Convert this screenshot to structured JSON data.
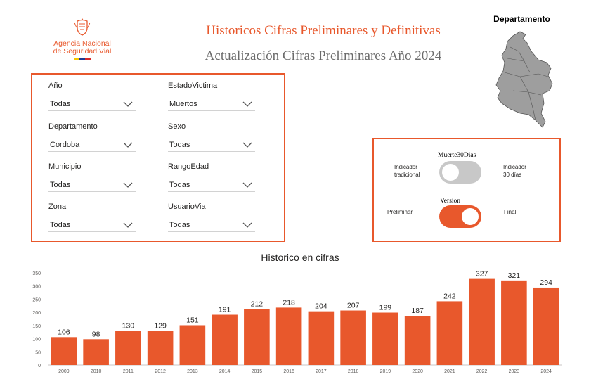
{
  "logo": {
    "line1": "Agencia Nacional",
    "line2": "de Seguridad Vial"
  },
  "header": {
    "title": "Historicos Cifras Preliminares y Definitivas",
    "subtitle": "Actualización Cifras Preliminares Año 2024"
  },
  "map": {
    "label": "Departamento"
  },
  "filters": [
    {
      "label": "Año",
      "value": "Todas"
    },
    {
      "label": "EstadoVictima",
      "value": "Muertos"
    },
    {
      "label": "Departamento",
      "value": "Cordoba"
    },
    {
      "label": "Sexo",
      "value": "Todas"
    },
    {
      "label": "Municipio",
      "value": "Todas"
    },
    {
      "label": "RangoEdad",
      "value": "Todas"
    },
    {
      "label": "Zona",
      "value": "Todas"
    },
    {
      "label": "UsuarioVia",
      "value": "Todas"
    }
  ],
  "toggles": {
    "muerte": {
      "title": "Muerte30Dias",
      "left_line1": "Indicador",
      "left_line2": "tradicional",
      "right_line1": "Indicador",
      "right_line2": "30 días",
      "state": "off"
    },
    "version": {
      "title": "Version",
      "left": "Preliminar",
      "right": "Final",
      "state": "on"
    }
  },
  "colors": {
    "accent": "#e8582c",
    "switch_off": "#c8c8c8",
    "map_fill": "#9e9e9e"
  },
  "chart_data": {
    "type": "bar",
    "title": "Historico en cifras",
    "categories": [
      "2009",
      "2010",
      "2011",
      "2012",
      "2013",
      "2014",
      "2015",
      "2016",
      "2017",
      "2018",
      "2019",
      "2020",
      "2021",
      "2022",
      "2023",
      "2024"
    ],
    "values": [
      106,
      98,
      130,
      129,
      151,
      191,
      212,
      218,
      204,
      207,
      199,
      187,
      242,
      327,
      321,
      294
    ],
    "ylim": [
      0,
      350
    ],
    "yticks": [
      0,
      50,
      100,
      150,
      200,
      250,
      300,
      350
    ],
    "color": "#e8582c",
    "grid": false
  }
}
